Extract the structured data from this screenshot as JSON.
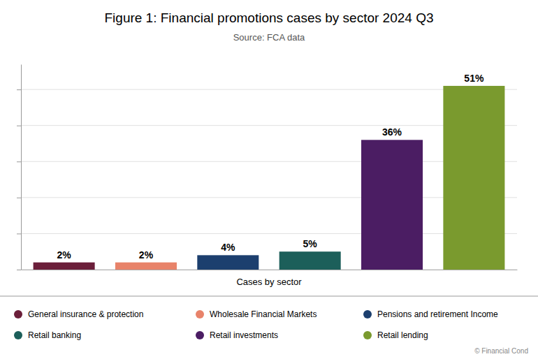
{
  "chart_data": {
    "type": "bar",
    "title": "Figure 1: Financial promotions cases by sector 2024 Q3",
    "subtitle": "Source: FCA data",
    "xlabel": "Cases by sector",
    "categories": [
      "General insurance & protection",
      "Wholesale Financial Markets",
      "Pensions and retirement Income",
      "Retail banking",
      "Retail investments",
      "Retail lending"
    ],
    "values": [
      2,
      2,
      4,
      5,
      36,
      51
    ],
    "value_labels": [
      "2%",
      "2%",
      "4%",
      "5%",
      "36%",
      "51%"
    ],
    "colors": [
      "#6B1F3A",
      "#E8836A",
      "#1C3F6E",
      "#1C5F5A",
      "#4B1D63",
      "#7A9A2E"
    ],
    "ylim": [
      0,
      57
    ],
    "yticks": [
      0,
      10,
      20,
      30,
      40,
      50
    ],
    "grid": true,
    "data_labels": true,
    "tick_labels": false,
    "legend": "bottom",
    "annotations": [
      "© Financial Cond"
    ]
  }
}
